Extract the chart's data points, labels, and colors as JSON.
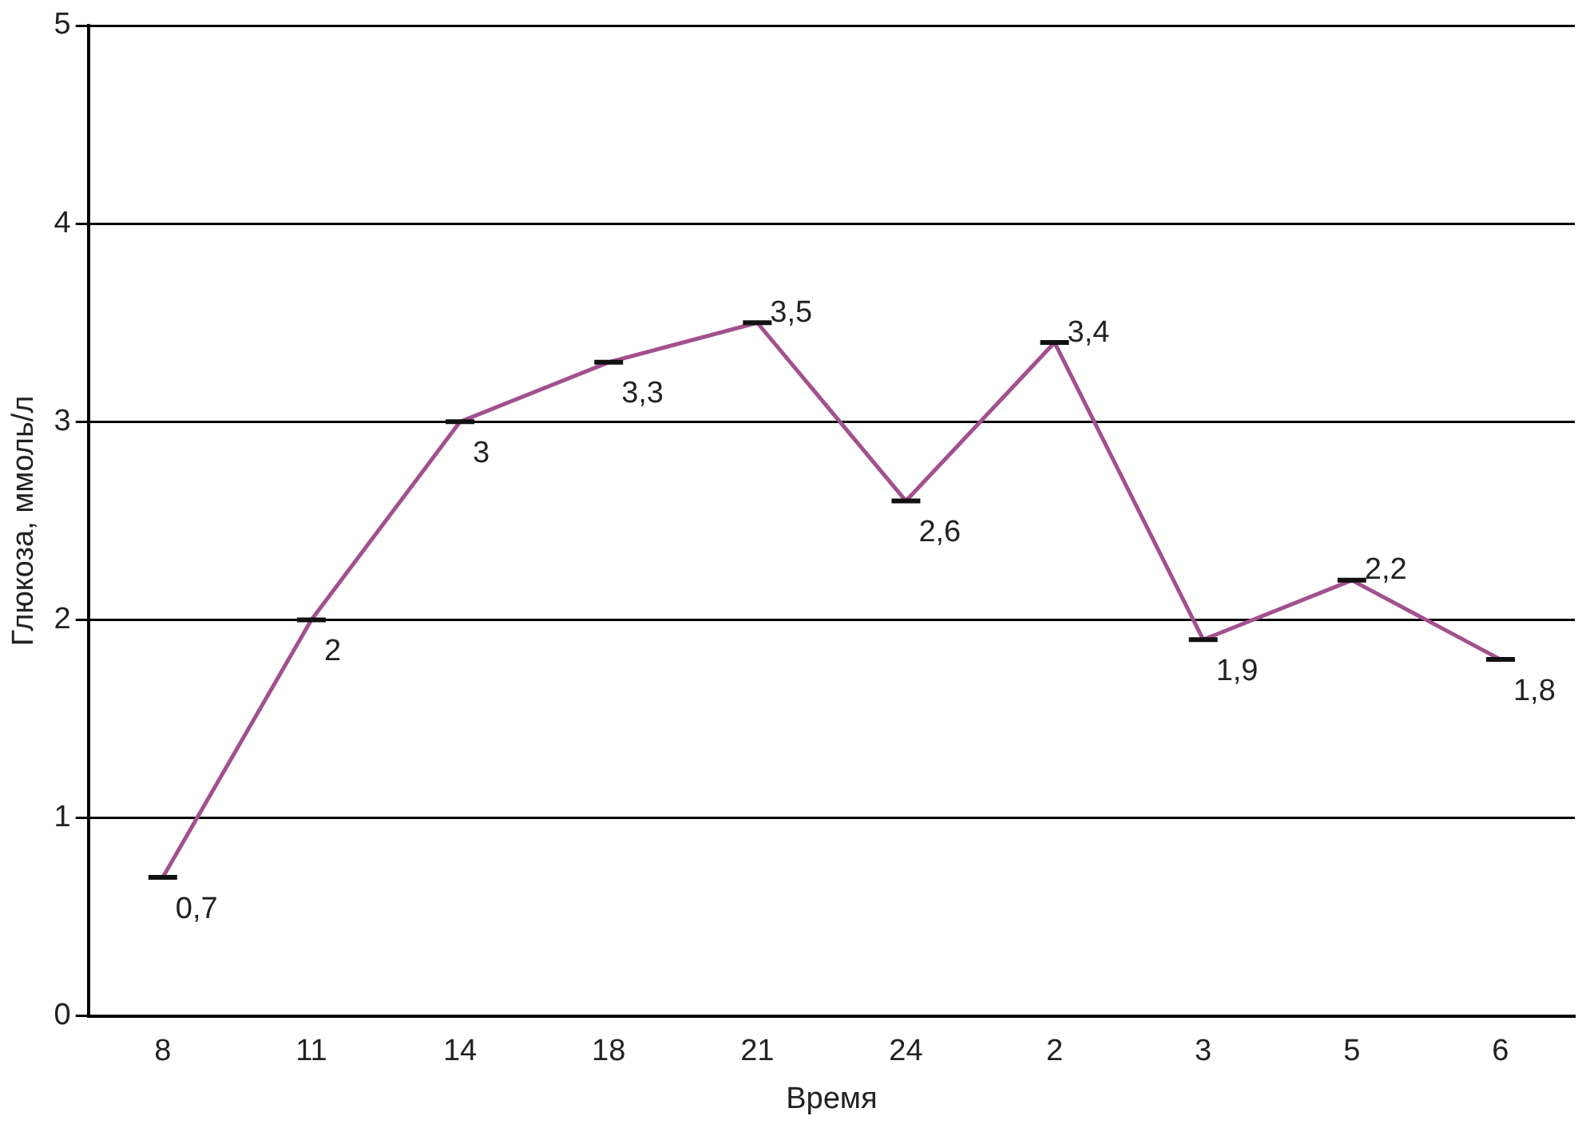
{
  "chart_data": {
    "type": "line",
    "xlabel": "Время",
    "ylabel": "Глюкоза, ммоль/л",
    "categories": [
      "8",
      "11",
      "14",
      "18",
      "21",
      "24",
      "2",
      "3",
      "5",
      "6"
    ],
    "series": [
      {
        "color": "#a2508e",
        "values": [
          0.7,
          2,
          3,
          3.3,
          3.5,
          2.6,
          3.4,
          1.9,
          2.2,
          1.8
        ],
        "value_labels": [
          "0,7",
          "2",
          "3",
          "3,3",
          "3,5",
          "2,6",
          "3,4",
          "1,9",
          "2,2",
          "1,8"
        ]
      }
    ],
    "ylim": [
      0,
      5
    ],
    "yticks": [
      0,
      1,
      2,
      3,
      4,
      5
    ],
    "grid": "y",
    "legend": false
  }
}
